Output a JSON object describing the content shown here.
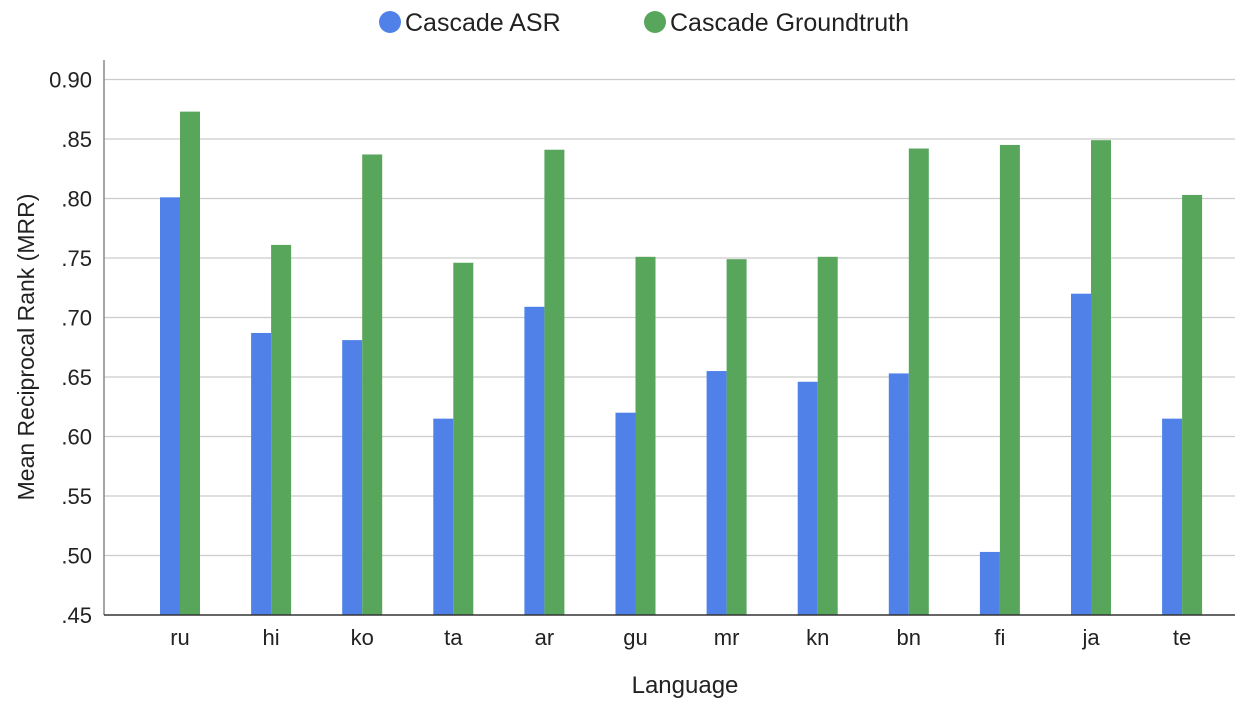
{
  "chart_data": {
    "type": "bar",
    "title": "",
    "xlabel": "Language",
    "ylabel": "Mean Reciprocal Rank (MRR)",
    "ylim": [
      0.45,
      0.9
    ],
    "yticks": [
      0.45,
      0.5,
      0.55,
      0.6,
      0.65,
      0.7,
      0.75,
      0.8,
      0.85,
      0.9
    ],
    "ytick_labels": [
      ".45",
      ".50",
      ".55",
      ".60",
      ".65",
      ".70",
      ".75",
      ".80",
      ".85",
      "0.90"
    ],
    "grid": true,
    "legend_position": "top",
    "categories": [
      "ru",
      "hi",
      "ko",
      "ta",
      "ar",
      "gu",
      "mr",
      "kn",
      "bn",
      "fi",
      "ja",
      "te"
    ],
    "series": [
      {
        "name": "Cascade ASR",
        "color": "#4f81e8",
        "values": [
          0.801,
          0.687,
          0.681,
          0.615,
          0.709,
          0.62,
          0.655,
          0.646,
          0.653,
          0.503,
          0.72,
          0.615
        ]
      },
      {
        "name": "Cascade Groundtruth",
        "color": "#57a65c",
        "values": [
          0.873,
          0.761,
          0.837,
          0.746,
          0.841,
          0.751,
          0.749,
          0.751,
          0.842,
          0.845,
          0.849,
          0.803
        ]
      }
    ]
  }
}
